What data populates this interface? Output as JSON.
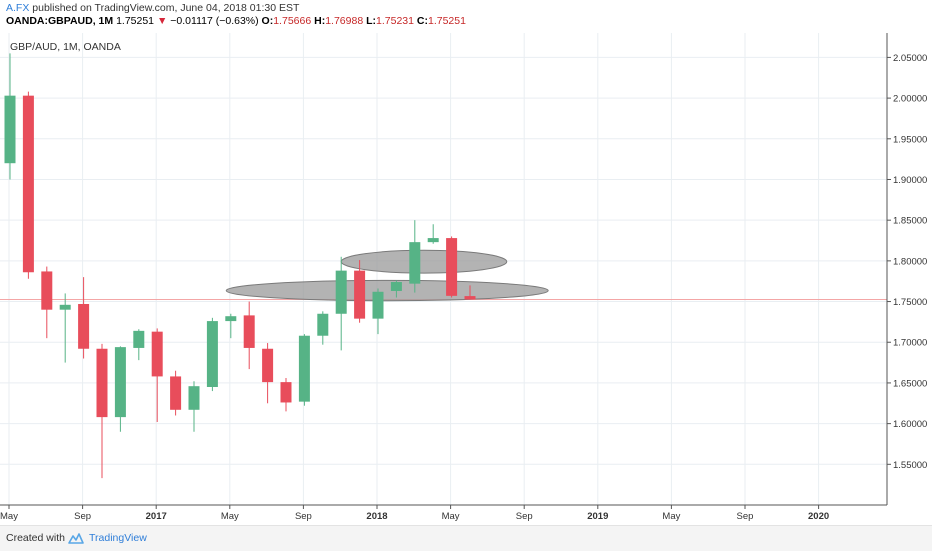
{
  "header": {
    "author": "A.FX",
    "published_text": "published on TradingView.com, June 04, 2018 01:30 EST",
    "symbol": "OANDA:GBPAUD, 1M",
    "last": "1.75251",
    "change_arrow": "▼",
    "change": "−0.01117 (−0.63%)",
    "open_label": "O:",
    "open": "1.75666",
    "high_label": "H:",
    "high": "1.76988",
    "low_label": "L:",
    "low": "1.75231",
    "close_label": "C:",
    "close": "1.75251"
  },
  "chart_data": {
    "type": "candlestick",
    "title": "GBP/AUD, 1M, OANDA",
    "x_tick_labels": [
      "May",
      "Sep",
      "2017",
      "May",
      "Sep",
      "2018",
      "May",
      "Sep",
      "2019",
      "May",
      "Sep",
      "2020"
    ],
    "y_ticks": [
      1.55,
      1.6,
      1.65,
      1.7,
      1.75,
      1.8,
      1.85,
      1.9,
      1.95,
      2.0,
      2.05
    ],
    "y_tick_labels": [
      "1.55000",
      "1.60000",
      "1.65000",
      "1.70000",
      "1.75000",
      "1.80000",
      "1.85000",
      "1.90000",
      "1.95000",
      "2.00000",
      "2.05000"
    ],
    "ylim": [
      1.5,
      2.08
    ],
    "current_price_line": 1.7525,
    "grid": true,
    "candles": [
      {
        "o": 1.92,
        "h": 2.055,
        "l": 1.9,
        "c": 2.003
      },
      {
        "o": 2.003,
        "h": 2.008,
        "l": 1.778,
        "c": 1.786
      },
      {
        "o": 1.787,
        "h": 1.793,
        "l": 1.705,
        "c": 1.74
      },
      {
        "o": 1.74,
        "h": 1.76,
        "l": 1.675,
        "c": 1.746
      },
      {
        "o": 1.747,
        "h": 1.78,
        "l": 1.68,
        "c": 1.692
      },
      {
        "o": 1.692,
        "h": 1.698,
        "l": 1.533,
        "c": 1.608
      },
      {
        "o": 1.608,
        "h": 1.695,
        "l": 1.59,
        "c": 1.694
      },
      {
        "o": 1.693,
        "h": 1.716,
        "l": 1.678,
        "c": 1.714
      },
      {
        "o": 1.713,
        "h": 1.717,
        "l": 1.602,
        "c": 1.658
      },
      {
        "o": 1.658,
        "h": 1.665,
        "l": 1.61,
        "c": 1.617
      },
      {
        "o": 1.617,
        "h": 1.652,
        "l": 1.59,
        "c": 1.646
      },
      {
        "o": 1.645,
        "h": 1.73,
        "l": 1.64,
        "c": 1.726
      },
      {
        "o": 1.726,
        "h": 1.735,
        "l": 1.705,
        "c": 1.732
      },
      {
        "o": 1.733,
        "h": 1.75,
        "l": 1.667,
        "c": 1.693
      },
      {
        "o": 1.692,
        "h": 1.699,
        "l": 1.625,
        "c": 1.651
      },
      {
        "o": 1.651,
        "h": 1.656,
        "l": 1.615,
        "c": 1.626
      },
      {
        "o": 1.627,
        "h": 1.71,
        "l": 1.622,
        "c": 1.708
      },
      {
        "o": 1.708,
        "h": 1.738,
        "l": 1.697,
        "c": 1.735
      },
      {
        "o": 1.735,
        "h": 1.805,
        "l": 1.69,
        "c": 1.788
      },
      {
        "o": 1.788,
        "h": 1.801,
        "l": 1.724,
        "c": 1.729
      },
      {
        "o": 1.729,
        "h": 1.766,
        "l": 1.71,
        "c": 1.762
      },
      {
        "o": 1.763,
        "h": 1.776,
        "l": 1.755,
        "c": 1.774
      },
      {
        "o": 1.772,
        "h": 1.85,
        "l": 1.761,
        "c": 1.823
      },
      {
        "o": 1.823,
        "h": 1.845,
        "l": 1.821,
        "c": 1.828
      },
      {
        "o": 1.828,
        "h": 1.83,
        "l": 1.755,
        "c": 1.757
      },
      {
        "o": 1.7567,
        "h": 1.7699,
        "l": 1.7523,
        "c": 1.7525
      }
    ],
    "annotations": [
      {
        "type": "ellipse",
        "center_candle": 22.5,
        "center_price": 1.799,
        "width_candles": 9.0,
        "height_price": 0.028
      },
      {
        "type": "ellipse",
        "center_candle": 20.5,
        "center_price": 1.7635,
        "width_candles": 17.5,
        "height_price": 0.025
      }
    ],
    "colors": {
      "up": "#56b386",
      "down": "#e84d5b",
      "wick_up": "#56b386",
      "wick_down": "#e84d5b",
      "grid": "#e9eef2",
      "axis": "#555555",
      "price_line": "#f4a6a6",
      "annotation_fill": "#9a9a9a",
      "annotation_stroke": "#7a7a7a"
    }
  },
  "footer": {
    "created_with": "Created with",
    "brand": "TradingView",
    "logo_icon": "tradingview-cloud-icon"
  }
}
